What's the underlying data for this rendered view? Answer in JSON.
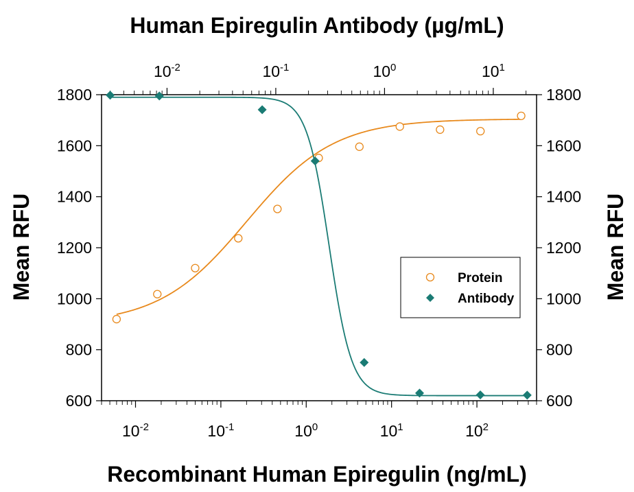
{
  "chart_data": {
    "type": "scatter",
    "title": "Human Epiregulin Antibody (µg/mL)",
    "xlabel": "Recombinant Human Epiregulin (ng/mL)",
    "x2label": "Human Epiregulin Antibody (µg/mL)",
    "ylabel": "Mean RFU",
    "y2label": "Mean RFU",
    "x_scale": "log",
    "x2_scale": "log",
    "xlim": [
      0.004,
      500
    ],
    "x2lim": [
      0.0025,
      25
    ],
    "ylim": [
      600,
      1800
    ],
    "yticks": [
      600,
      800,
      1000,
      1200,
      1400,
      1600,
      1800
    ],
    "xticks": [
      {
        "value": 0.01,
        "base": "10",
        "exp": "-2"
      },
      {
        "value": 0.1,
        "base": "10",
        "exp": "-1"
      },
      {
        "value": 1,
        "base": "10",
        "exp": "0"
      },
      {
        "value": 10,
        "base": "10",
        "exp": "1"
      },
      {
        "value": 100,
        "base": "10",
        "exp": "2"
      }
    ],
    "x2ticks": [
      {
        "value": 0.01,
        "base": "10",
        "exp": "-2"
      },
      {
        "value": 0.1,
        "base": "10",
        "exp": "-1"
      },
      {
        "value": 1,
        "base": "10",
        "exp": "0"
      },
      {
        "value": 10,
        "base": "10",
        "exp": "1"
      }
    ],
    "legend": {
      "position": "right",
      "entries": [
        "Protein",
        "Antibody"
      ]
    },
    "series": [
      {
        "name": "Protein",
        "axis": "bottom",
        "marker": "open-circle",
        "color": "#E8891C",
        "points": [
          {
            "x": 0.006,
            "y": 920
          },
          {
            "x": 0.018,
            "y": 1018
          },
          {
            "x": 0.05,
            "y": 1120
          },
          {
            "x": 0.16,
            "y": 1237
          },
          {
            "x": 0.46,
            "y": 1352
          },
          {
            "x": 1.4,
            "y": 1552
          },
          {
            "x": 4.2,
            "y": 1596
          },
          {
            "x": 12.5,
            "y": 1675
          },
          {
            "x": 37,
            "y": 1663
          },
          {
            "x": 110,
            "y": 1657
          },
          {
            "x": 330,
            "y": 1717
          }
        ],
        "fit": {
          "bottom": 900,
          "top": 1705,
          "ec50": 0.2,
          "hill": 0.85
        }
      },
      {
        "name": "Antibody",
        "axis": "top",
        "marker": "filled-diamond",
        "color": "#1A7B74",
        "points": [
          {
            "x": 0.003,
            "y": 1798
          },
          {
            "x": 0.0085,
            "y": 1795
          },
          {
            "x": 0.075,
            "y": 1741
          },
          {
            "x": 0.23,
            "y": 1540
          },
          {
            "x": 0.65,
            "y": 750
          },
          {
            "x": 2.1,
            "y": 630
          },
          {
            "x": 7.6,
            "y": 623
          },
          {
            "x": 20.5,
            "y": 622
          }
        ],
        "fit": {
          "bottom": 620,
          "top": 1790,
          "ec50": 0.31,
          "hill": -4.2
        }
      }
    ]
  }
}
